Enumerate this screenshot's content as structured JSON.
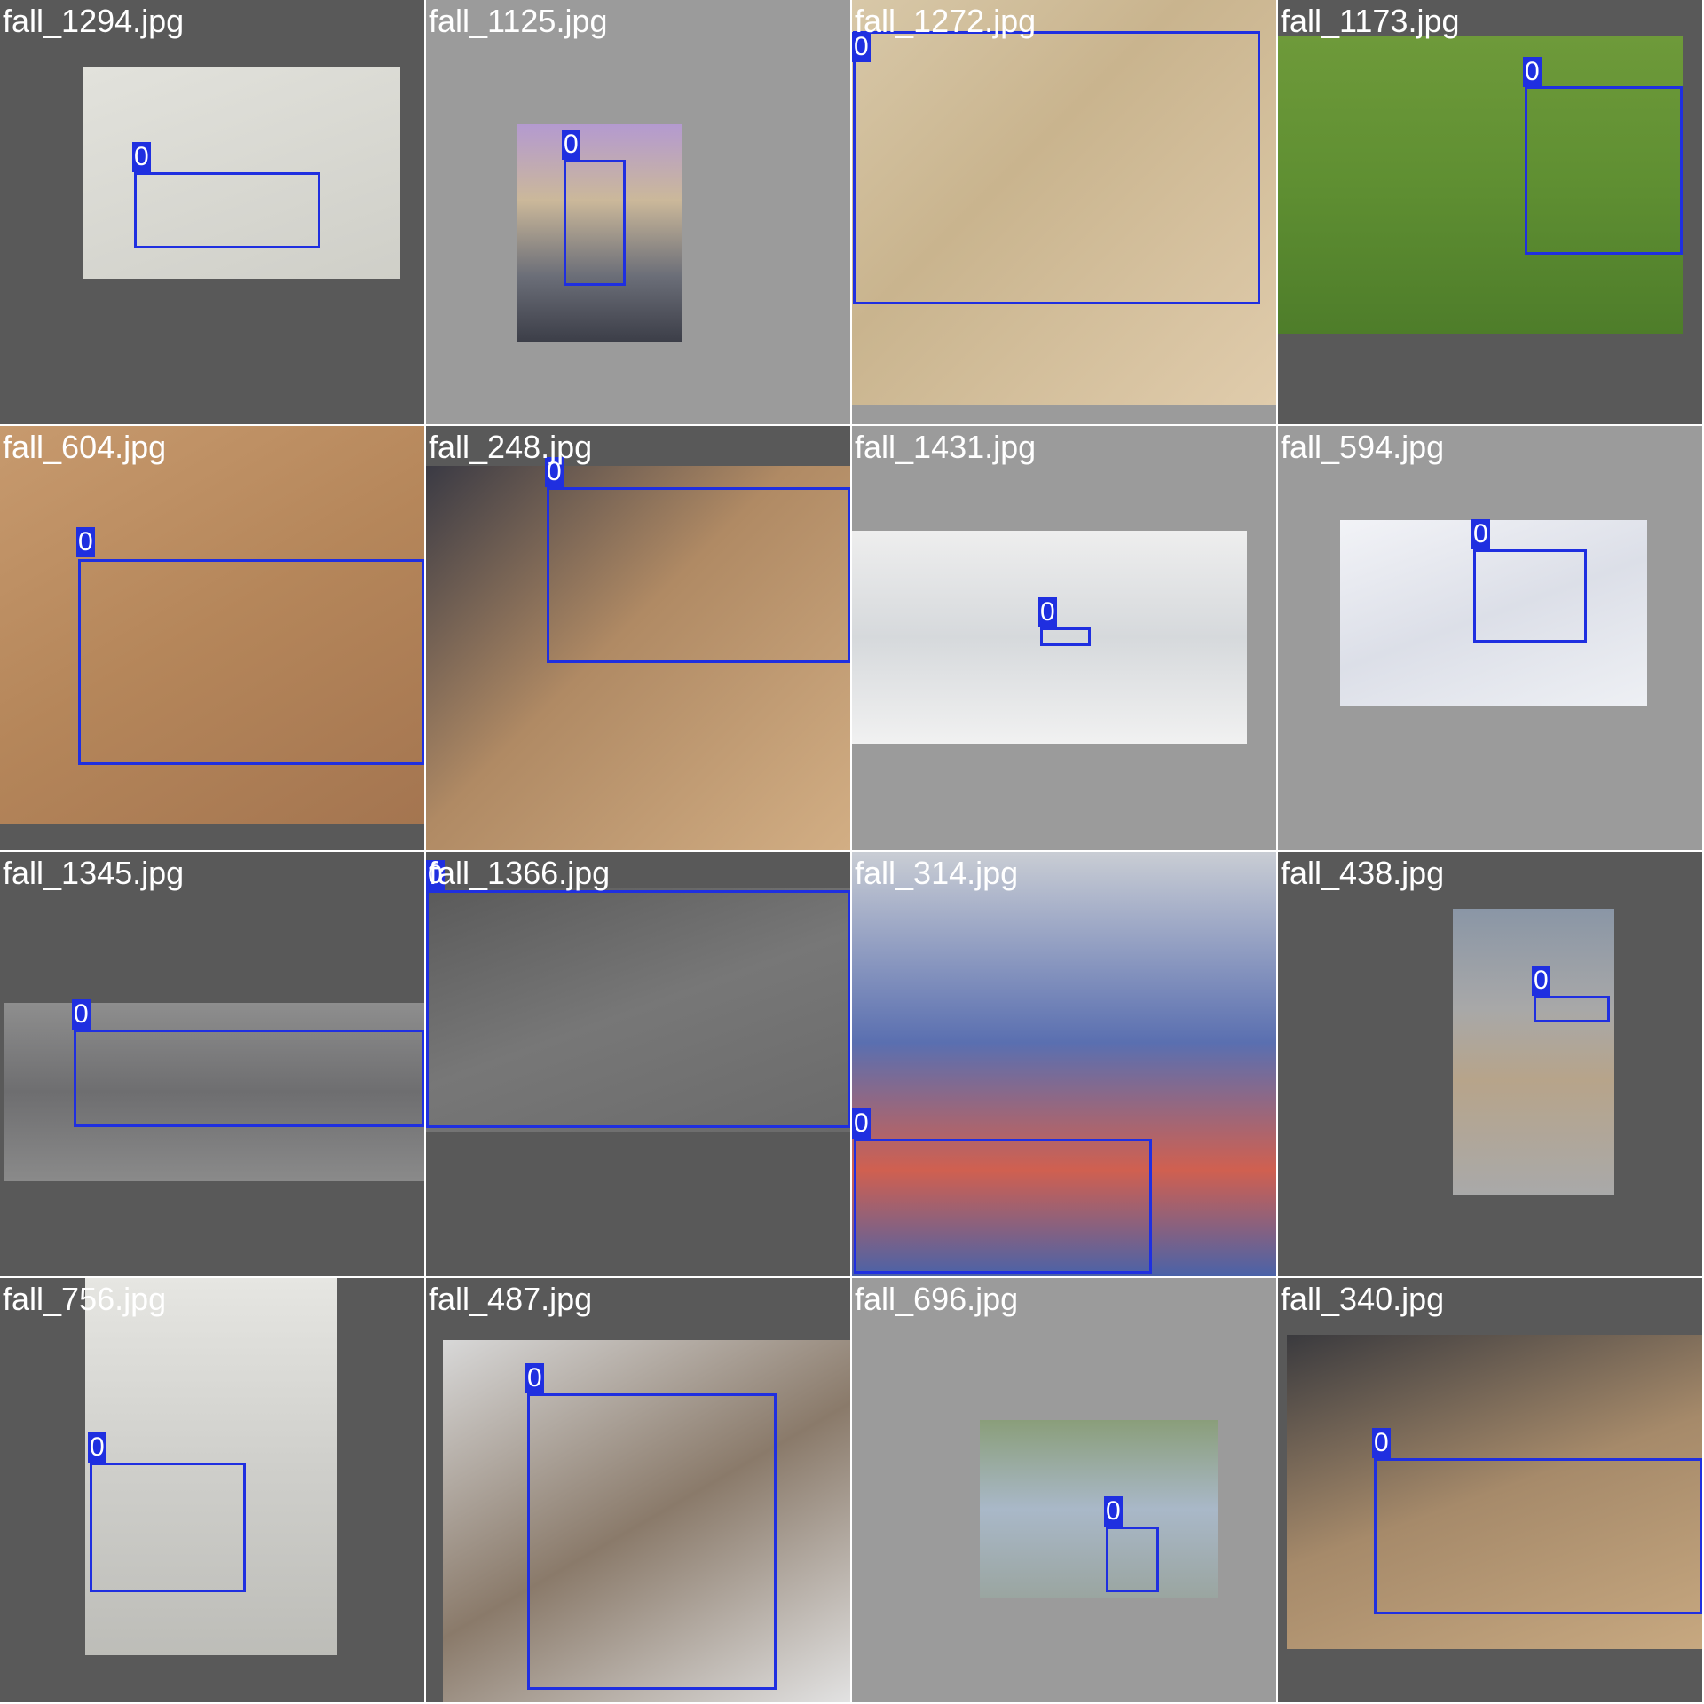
{
  "colors": {
    "box": "#1f2fe0",
    "pad_dark": "#595959",
    "pad_light": "#9b9b9b",
    "label_text": "#ffffff"
  },
  "tiles": [
    {
      "filename": "fall_1294.jpg",
      "class_label": "0"
    },
    {
      "filename": "fall_1125.jpg",
      "class_label": "0"
    },
    {
      "filename": "fall_1272.jpg",
      "class_label": "0"
    },
    {
      "filename": "fall_1173.jpg",
      "class_label": "0"
    },
    {
      "filename": "fall_604.jpg",
      "class_label": "0"
    },
    {
      "filename": "fall_248.jpg",
      "class_label": "0"
    },
    {
      "filename": "fall_1431.jpg",
      "class_label": "0"
    },
    {
      "filename": "fall_594.jpg",
      "class_label": "0"
    },
    {
      "filename": "fall_1345.jpg",
      "class_label": "0"
    },
    {
      "filename": "fall_1366.jpg",
      "class_label": "0"
    },
    {
      "filename": "fall_314.jpg",
      "class_label": "0"
    },
    {
      "filename": "fall_438.jpg",
      "class_label": "0"
    },
    {
      "filename": "fall_756.jpg",
      "class_label": "0"
    },
    {
      "filename": "fall_487.jpg",
      "class_label": "0"
    },
    {
      "filename": "fall_696.jpg",
      "class_label": "0"
    },
    {
      "filename": "fall_340.jpg",
      "class_label": "0"
    }
  ]
}
